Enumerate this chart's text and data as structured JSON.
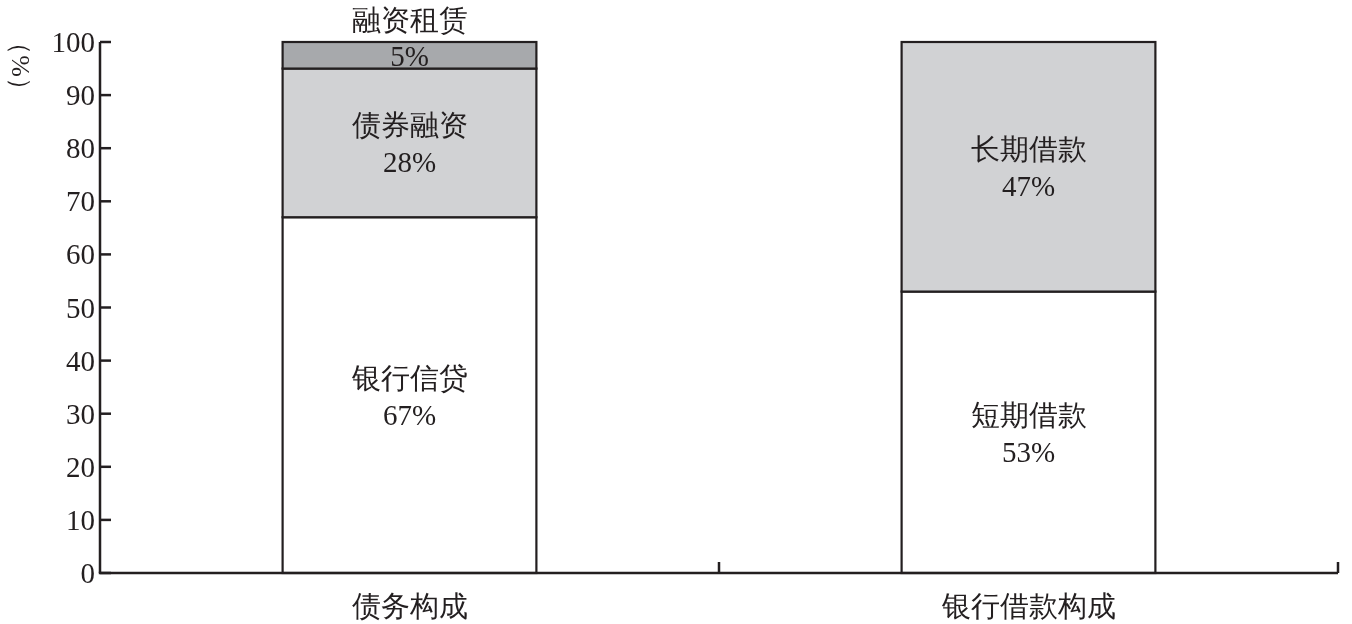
{
  "chart_data": {
    "type": "bar",
    "stacked": true,
    "categories": [
      "债务构成",
      "银行借款构成"
    ],
    "series": [
      {
        "color": "#ffffff",
        "values": [
          67,
          53
        ],
        "value_labels": [
          "银行信贷\n67%",
          "短期借款\n53%"
        ]
      },
      {
        "color": "#d1d2d4",
        "values": [
          28,
          47
        ],
        "value_labels": [
          "债券融资\n28%",
          "长期借款\n47%"
        ]
      },
      {
        "color": "#a7a9ac",
        "values": [
          5,
          null
        ],
        "value_labels": [
          "5%",
          null
        ]
      }
    ],
    "ylabel": "（%）",
    "ylim": [
      0,
      100
    ],
    "yticks": [
      0,
      10,
      20,
      30,
      40,
      50,
      60,
      70,
      80,
      90,
      100
    ],
    "annotations": [
      {
        "text": "融资租赁",
        "x": "债务构成",
        "y": 100
      }
    ]
  }
}
